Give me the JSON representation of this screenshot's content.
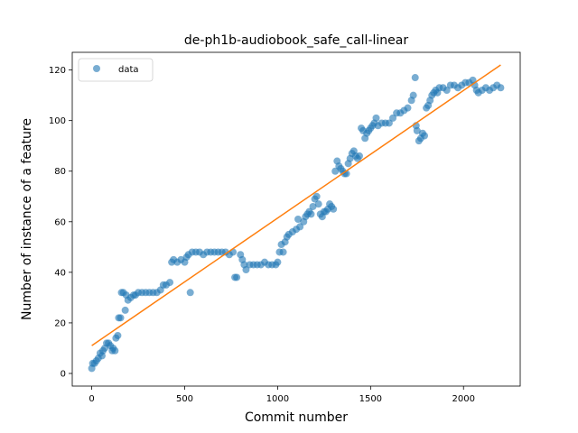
{
  "chart_data": {
    "type": "scatter",
    "title": "de-ph1b-audiobook_safe_call-linear",
    "xlabel": "Commit number",
    "ylabel": "Number of instance of a feature",
    "xlim": [
      -105,
      2305
    ],
    "ylim": [
      -5,
      127
    ],
    "xticks": [
      0,
      500,
      1000,
      1500,
      2000
    ],
    "yticks": [
      0,
      20,
      40,
      60,
      80,
      100,
      120
    ],
    "xtick_labels": [
      "0",
      "500",
      "1000",
      "1500",
      "2000"
    ],
    "ytick_labels": [
      "0",
      "20",
      "40",
      "60",
      "80",
      "100",
      "120"
    ],
    "grid": false,
    "legend": {
      "position": "top-left",
      "entries": [
        "data"
      ]
    },
    "colors": {
      "data": "#1f77b4",
      "fit": "#ff7f0e"
    },
    "series": [
      {
        "name": "data",
        "kind": "scatter",
        "points": [
          [
            0,
            2
          ],
          [
            5,
            4
          ],
          [
            15,
            4
          ],
          [
            25,
            5
          ],
          [
            35,
            6
          ],
          [
            45,
            8
          ],
          [
            55,
            7
          ],
          [
            60,
            9
          ],
          [
            70,
            10
          ],
          [
            80,
            12
          ],
          [
            90,
            12
          ],
          [
            100,
            11
          ],
          [
            110,
            9
          ],
          [
            115,
            10
          ],
          [
            125,
            9
          ],
          [
            130,
            14
          ],
          [
            140,
            15
          ],
          [
            145,
            22
          ],
          [
            155,
            22
          ],
          [
            160,
            32
          ],
          [
            170,
            32
          ],
          [
            180,
            25
          ],
          [
            185,
            31
          ],
          [
            195,
            29
          ],
          [
            210,
            30
          ],
          [
            225,
            31
          ],
          [
            235,
            31
          ],
          [
            250,
            32
          ],
          [
            270,
            32
          ],
          [
            290,
            32
          ],
          [
            310,
            32
          ],
          [
            330,
            32
          ],
          [
            350,
            32
          ],
          [
            370,
            33
          ],
          [
            385,
            35
          ],
          [
            400,
            35
          ],
          [
            420,
            36
          ],
          [
            430,
            44
          ],
          [
            440,
            45
          ],
          [
            460,
            44
          ],
          [
            480,
            45
          ],
          [
            500,
            44
          ],
          [
            510,
            46
          ],
          [
            520,
            47
          ],
          [
            530,
            32
          ],
          [
            540,
            48
          ],
          [
            560,
            48
          ],
          [
            580,
            48
          ],
          [
            600,
            47
          ],
          [
            620,
            48
          ],
          [
            640,
            48
          ],
          [
            660,
            48
          ],
          [
            680,
            48
          ],
          [
            700,
            48
          ],
          [
            720,
            48
          ],
          [
            740,
            47
          ],
          [
            760,
            48
          ],
          [
            770,
            38
          ],
          [
            780,
            38
          ],
          [
            800,
            47
          ],
          [
            810,
            45
          ],
          [
            820,
            43
          ],
          [
            830,
            41
          ],
          [
            850,
            43
          ],
          [
            870,
            43
          ],
          [
            890,
            43
          ],
          [
            910,
            43
          ],
          [
            930,
            44
          ],
          [
            950,
            43
          ],
          [
            970,
            43
          ],
          [
            990,
            43
          ],
          [
            1000,
            44
          ],
          [
            1010,
            48
          ],
          [
            1020,
            51
          ],
          [
            1030,
            48
          ],
          [
            1040,
            52
          ],
          [
            1050,
            54
          ],
          [
            1060,
            55
          ],
          [
            1080,
            56
          ],
          [
            1100,
            57
          ],
          [
            1110,
            61
          ],
          [
            1120,
            58
          ],
          [
            1140,
            60
          ],
          [
            1150,
            62
          ],
          [
            1160,
            63
          ],
          [
            1170,
            64
          ],
          [
            1180,
            63
          ],
          [
            1190,
            66
          ],
          [
            1200,
            69
          ],
          [
            1210,
            70
          ],
          [
            1220,
            67
          ],
          [
            1230,
            63
          ],
          [
            1240,
            62
          ],
          [
            1250,
            64
          ],
          [
            1260,
            64
          ],
          [
            1270,
            65
          ],
          [
            1280,
            67
          ],
          [
            1290,
            66
          ],
          [
            1300,
            65
          ],
          [
            1310,
            80
          ],
          [
            1320,
            84
          ],
          [
            1330,
            82
          ],
          [
            1340,
            81
          ],
          [
            1350,
            80
          ],
          [
            1360,
            79
          ],
          [
            1370,
            79
          ],
          [
            1380,
            83
          ],
          [
            1390,
            85
          ],
          [
            1400,
            87
          ],
          [
            1410,
            88
          ],
          [
            1420,
            86
          ],
          [
            1430,
            85
          ],
          [
            1440,
            86
          ],
          [
            1450,
            97
          ],
          [
            1460,
            96
          ],
          [
            1470,
            93
          ],
          [
            1480,
            95
          ],
          [
            1490,
            96
          ],
          [
            1500,
            97
          ],
          [
            1510,
            98
          ],
          [
            1520,
            99
          ],
          [
            1530,
            101
          ],
          [
            1540,
            98
          ],
          [
            1560,
            99
          ],
          [
            1580,
            99
          ],
          [
            1600,
            99
          ],
          [
            1620,
            101
          ],
          [
            1640,
            103
          ],
          [
            1660,
            103
          ],
          [
            1680,
            104
          ],
          [
            1700,
            105
          ],
          [
            1720,
            108
          ],
          [
            1730,
            110
          ],
          [
            1740,
            117
          ],
          [
            1745,
            98
          ],
          [
            1750,
            96
          ],
          [
            1760,
            92
          ],
          [
            1770,
            93
          ],
          [
            1780,
            95
          ],
          [
            1790,
            94
          ],
          [
            1800,
            105
          ],
          [
            1810,
            106
          ],
          [
            1820,
            108
          ],
          [
            1830,
            110
          ],
          [
            1840,
            111
          ],
          [
            1850,
            112
          ],
          [
            1860,
            111
          ],
          [
            1870,
            113
          ],
          [
            1890,
            113
          ],
          [
            1910,
            112
          ],
          [
            1930,
            114
          ],
          [
            1950,
            114
          ],
          [
            1970,
            113
          ],
          [
            1990,
            114
          ],
          [
            2010,
            115
          ],
          [
            2030,
            115
          ],
          [
            2050,
            116
          ],
          [
            2060,
            114
          ],
          [
            2070,
            112
          ],
          [
            2080,
            111
          ],
          [
            2100,
            112
          ],
          [
            2120,
            113
          ],
          [
            2140,
            112
          ],
          [
            2160,
            113
          ],
          [
            2180,
            114
          ],
          [
            2200,
            113
          ]
        ]
      },
      {
        "name": "",
        "kind": "line",
        "points": [
          [
            0,
            11
          ],
          [
            2200,
            122
          ]
        ]
      }
    ]
  }
}
